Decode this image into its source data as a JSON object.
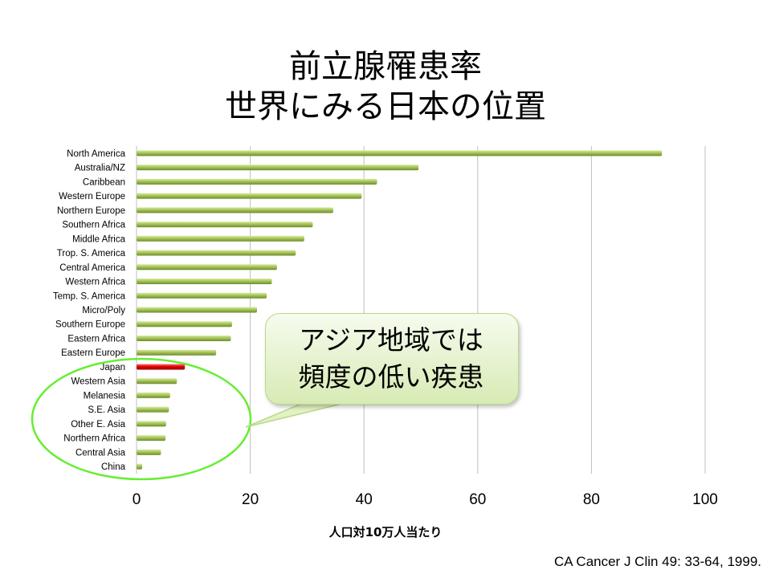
{
  "slide": {
    "title_line1": "前立腺罹患率",
    "title_line2": "世界にみる日本の位置",
    "callout_line1": "アジア地域では",
    "callout_line2": "頻度の低い疾患",
    "source": "CA Cancer J Clin 49: 33-64, 1999."
  },
  "colors": {
    "bar": "#9bbb59",
    "highlight_bar": "#e00000",
    "ellipse": "#66ee33",
    "grid": "#bfbfbf"
  },
  "chart_data": {
    "type": "bar",
    "orientation": "horizontal",
    "title": "",
    "xlabel": "人口対10万人当たり",
    "ylabel": "",
    "xlim": [
      0,
      100
    ],
    "xticks": [
      "0",
      "20",
      "40",
      "60",
      "80",
      "100"
    ],
    "grid": true,
    "highlight": "Japan",
    "categories": [
      "North America",
      "Australia/NZ",
      "Caribbean",
      "Western Europe",
      "Northern Europe",
      "Southern Africa",
      "Middle Africa",
      "Trop. S. America",
      "Central America",
      "Western Africa",
      "Temp. S. America",
      "Micro/Poly",
      "Southern Europe",
      "Eastern Africa",
      "Eastern Europe",
      "Japan",
      "Western Asia",
      "Melanesia",
      "S.E. Asia",
      "Other E. Asia",
      "Northern Africa",
      "Central Asia",
      "China"
    ],
    "values": [
      92.4,
      49.6,
      42.3,
      39.6,
      34.6,
      31.0,
      29.5,
      28.0,
      24.7,
      23.8,
      22.9,
      21.2,
      16.8,
      16.6,
      14.0,
      8.5,
      7.1,
      5.9,
      5.7,
      5.2,
      5.1,
      4.3,
      1.0
    ]
  }
}
